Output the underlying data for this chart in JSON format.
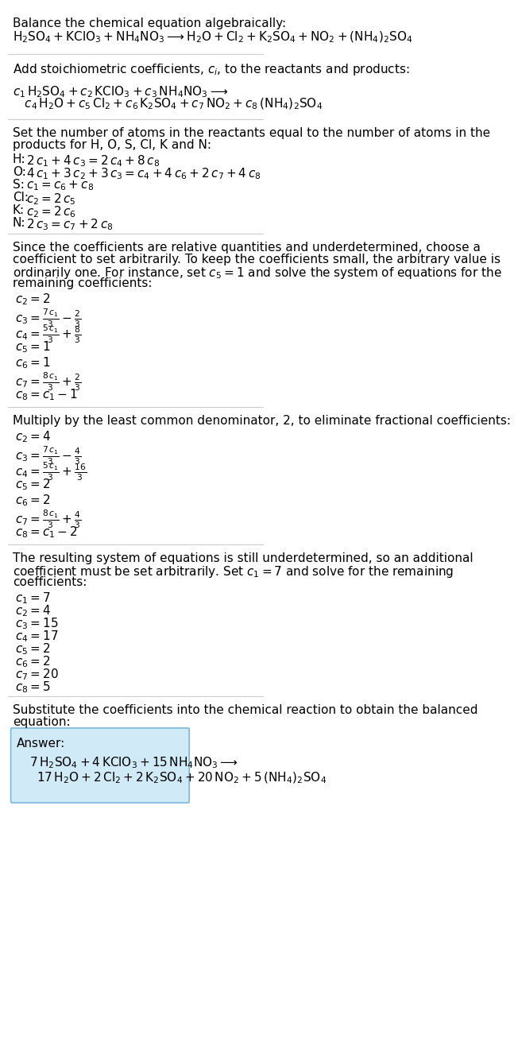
{
  "title_line": "Balance the chemical equation algebraically:",
  "eq_line1": "$\\mathregular{H_2SO_4 + KClO_3 + NH_4NO_3 \\longrightarrow H_2O + Cl_2 + K_2SO_4 + NO_2 + (NH_4)_2SO_4}$",
  "section2_title": "Add stoichiometric coefficients, $c_i$, to the reactants and products:",
  "eq2_line1": "$c_1\\,\\mathregular{H_2SO_4} + c_2\\,\\mathregular{KClO_3} + c_3\\,\\mathregular{NH_4NO_3} \\longrightarrow$",
  "eq2_line2": "$c_4\\,\\mathregular{H_2O} + c_5\\,\\mathregular{Cl_2} + c_6\\,\\mathregular{K_2SO_4} + c_7\\,\\mathregular{NO_2} + c_8\\,(\\mathregular{NH_4})_2\\mathregular{SO_4}$",
  "section3_title": "Set the number of atoms in the reactants equal to the number of atoms in the\nproducts for H, O, S, Cl, K and N:",
  "atom_eqs": [
    [
      "H:",
      "$2\\,c_1 + 4\\,c_3 = 2\\,c_4 + 8\\,c_8$"
    ],
    [
      "O:",
      "$4\\,c_1 + 3\\,c_2 + 3\\,c_3 = c_4 + 4\\,c_6 + 2\\,c_7 + 4\\,c_8$"
    ],
    [
      "S:",
      "$c_1 = c_6 + c_8$"
    ],
    [
      "Cl:",
      "$c_2 = 2\\,c_5$"
    ],
    [
      "K:",
      "$c_2 = 2\\,c_6$"
    ],
    [
      "N:",
      "$2\\,c_3 = c_7 + 2\\,c_8$"
    ]
  ],
  "section4_title": "Since the coefficients are relative quantities and underdetermined, choose a\ncoefficient to set arbitrarily. To keep the coefficients small, the arbitrary value is\nordinarily one. For instance, set $c_5 = 1$ and solve the system of equations for the\nremaining coefficients:",
  "coeff_solve1": [
    "$c_2 = 2$",
    "$c_3 = \\dfrac{7\\,c_1}{3} - \\dfrac{2}{3}$",
    "$c_4 = \\dfrac{5\\,c_1}{3} + \\dfrac{8}{3}$",
    "$c_5 = 1$",
    "$c_6 = 1$",
    "$c_7 = \\dfrac{8\\,c_1}{3} + \\dfrac{2}{3}$",
    "$c_8 = c_1 - 1$"
  ],
  "section5_title": "Multiply by the least common denominator, 2, to eliminate fractional coefficients:",
  "coeff_solve2": [
    "$c_2 = 4$",
    "$c_3 = \\dfrac{7\\,c_1}{3} - \\dfrac{4}{3}$",
    "$c_4 = \\dfrac{5\\,c_1}{3} + \\dfrac{16}{3}$",
    "$c_5 = 2$",
    "$c_6 = 2$",
    "$c_7 = \\dfrac{8\\,c_1}{3} + \\dfrac{4}{3}$",
    "$c_8 = c_1 - 2$"
  ],
  "section6_title": "The resulting system of equations is still underdetermined, so an additional\ncoefficient must be set arbitrarily. Set $c_1 = 7$ and solve for the remaining\ncoefficients:",
  "coeff_final": [
    "$c_1 = 7$",
    "$c_2 = 4$",
    "$c_3 = 15$",
    "$c_4 = 17$",
    "$c_5 = 2$",
    "$c_6 = 2$",
    "$c_7 = 20$",
    "$c_8 = 5$"
  ],
  "section7_title": "Substitute the coefficients into the chemical reaction to obtain the balanced\nequation:",
  "answer_label": "Answer:",
  "answer_line1": "$7\\,\\mathregular{H_2SO_4} + 4\\,\\mathregular{KClO_3} + 15\\,\\mathregular{NH_4NO_3} \\longrightarrow$",
  "answer_line2": "$17\\,\\mathregular{H_2O} + 2\\,\\mathregular{Cl_2} + 2\\,\\mathregular{K_2SO_4} + 20\\,\\mathregular{NO_2} + 5\\,(\\mathregular{NH_4})_2\\mathregular{SO_4}$",
  "bg_color": "#ffffff",
  "text_color": "#000000",
  "answer_box_color": "#d0eaf8",
  "answer_box_edge": "#7ab8d9",
  "divider_color": "#cccccc",
  "body_fontsize": 11,
  "formula_fontsize": 11,
  "small_fontsize": 10
}
